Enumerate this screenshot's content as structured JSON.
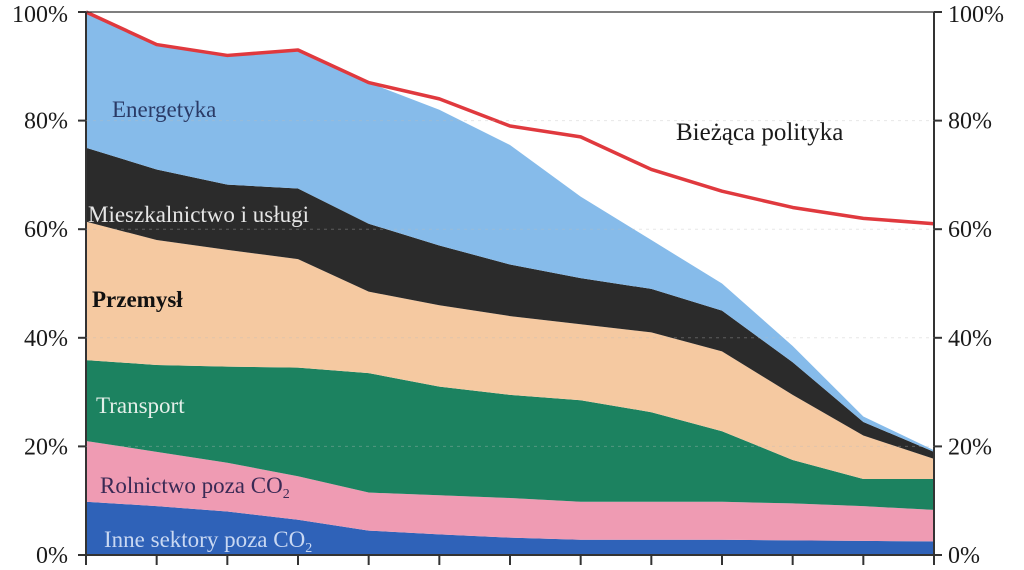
{
  "chart_data": {
    "type": "area",
    "stacked": true,
    "x": [
      0,
      1,
      2,
      3,
      4,
      5,
      6,
      7,
      8,
      9,
      10,
      11,
      12
    ],
    "ylim": [
      0,
      100
    ],
    "y_ticks_left": [
      "100%",
      "80%",
      "60%",
      "40%",
      "20%",
      "0%"
    ],
    "y_ticks_right": [
      "100%",
      "80%",
      "60%",
      "40%",
      "20%",
      "0%"
    ],
    "grid": false,
    "series": [
      {
        "name": "Inne sektory poza CO",
        "name_sub": "2",
        "color": "#2f62b8",
        "label_color": "#c9d8f2",
        "values": [
          9.8,
          9.0,
          8.0,
          6.5,
          4.5,
          3.8,
          3.2,
          2.8,
          2.8,
          2.8,
          2.7,
          2.6,
          2.5
        ]
      },
      {
        "name": "Rolnictwo poza CO",
        "name_sub": "2",
        "color": "#ef9bb3",
        "label_color": "#3a2a55",
        "values": [
          11.2,
          10.0,
          9.0,
          8.0,
          7.0,
          7.2,
          7.3,
          7.0,
          7.0,
          7.0,
          6.8,
          6.4,
          5.8
        ]
      },
      {
        "name": "Transport",
        "color": "#1c8260",
        "label_color": "#e3efe9",
        "values": [
          14.9,
          16.0,
          17.7,
          20.0,
          22.0,
          20.0,
          19.0,
          18.7,
          16.5,
          13.0,
          8.0,
          5.0,
          5.7
        ]
      },
      {
        "name": "Przemysł",
        "color": "#f5c9a1",
        "label_color": "#111111",
        "values": [
          25.5,
          23.0,
          21.5,
          20.0,
          15.0,
          15.0,
          14.5,
          14.0,
          14.7,
          14.7,
          12.0,
          8.0,
          3.7
        ]
      },
      {
        "name": "Mieszkalnictwo i usługi",
        "color": "#2b2b2b",
        "label_color": "#e6e6e6",
        "values": [
          13.6,
          13.0,
          12.0,
          13.0,
          12.5,
          11.0,
          9.5,
          8.5,
          8.0,
          7.5,
          6.0,
          2.5,
          1.3
        ]
      },
      {
        "name": "Energetyka",
        "color": "#86bbea",
        "label_color": "#2a3a66",
        "values": [
          25.0,
          23.0,
          23.8,
          25.2,
          26.0,
          25.0,
          22.0,
          15.0,
          9.0,
          5.0,
          3.0,
          1.0,
          0.3
        ]
      }
    ],
    "line_series": [
      {
        "name": "Bieżąca polityka",
        "color": "#e0393e",
        "values": [
          100,
          94,
          92,
          93,
          87,
          84,
          79,
          77,
          71,
          67,
          64,
          62,
          61
        ]
      }
    ]
  }
}
